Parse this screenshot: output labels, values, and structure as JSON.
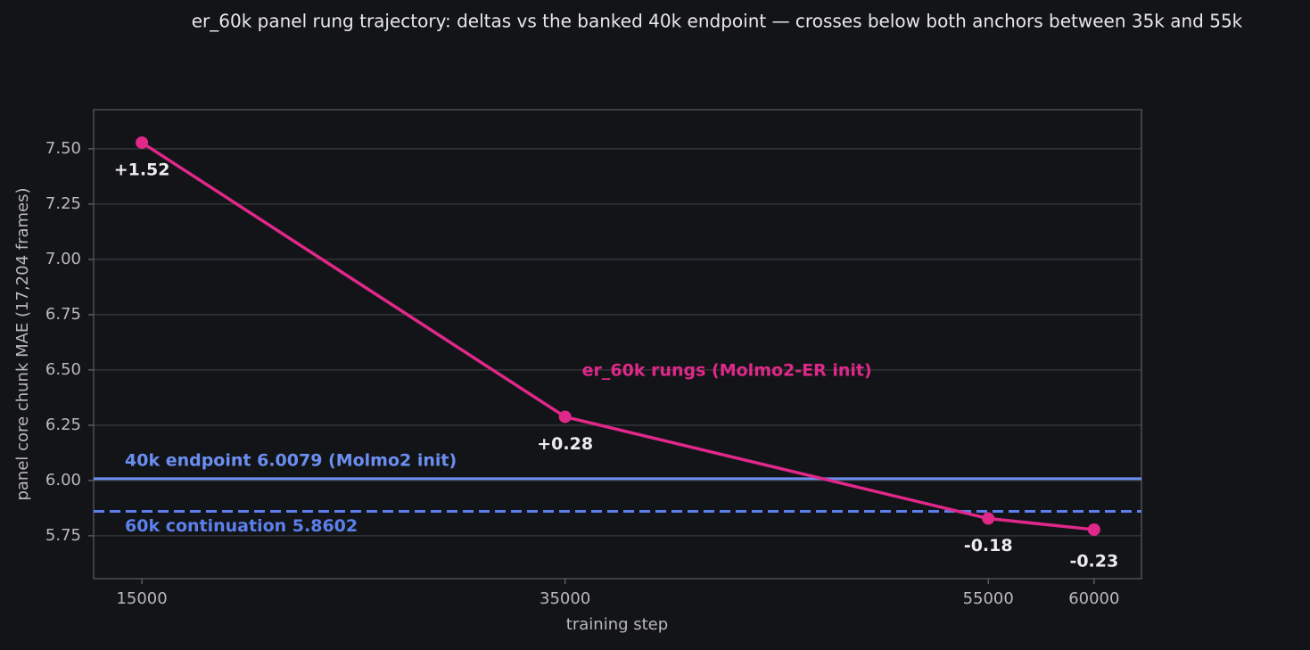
{
  "chart_data": {
    "type": "line",
    "title": "er_60k panel rung trajectory: deltas vs the banked 40k endpoint — crosses below both anchors between 35k and 55k",
    "x_label": "training step",
    "y_label": "panel core chunk MAE (17,204 frames)",
    "x": [
      15000,
      35000,
      55000,
      60000
    ],
    "series": [
      {
        "name": "er_60k rungs (Molmo2-ER init)",
        "color": "#e0288a",
        "values": [
          7.528,
          6.288,
          5.828,
          5.778
        ]
      }
    ],
    "delta_labels": [
      "+1.52",
      "+0.28",
      "-0.18",
      "-0.23"
    ],
    "reference_lines": [
      {
        "label": "40k endpoint 6.0079 (Molmo2 init)",
        "value": 6.0079,
        "color": "#6b8ff0",
        "style": "solid"
      },
      {
        "label": "60k continuation 5.8602",
        "value": 5.8602,
        "color": "#5b80ec",
        "style": "dashed"
      }
    ],
    "xlim": [
      12720,
      62240
    ],
    "ylim": [
      5.556,
      7.677
    ],
    "xticks": [
      15000,
      35000,
      55000,
      60000
    ],
    "yticks": [
      5.75,
      {
        "value": 6,
        "label": "6.00"
      },
      6.25,
      {
        "value": 6.5,
        "label": "6.50"
      },
      6.75,
      {
        "value": 7,
        "label": "7.00"
      },
      7.25,
      {
        "value": 7.5,
        "label": "7.50"
      }
    ],
    "grid": true
  }
}
